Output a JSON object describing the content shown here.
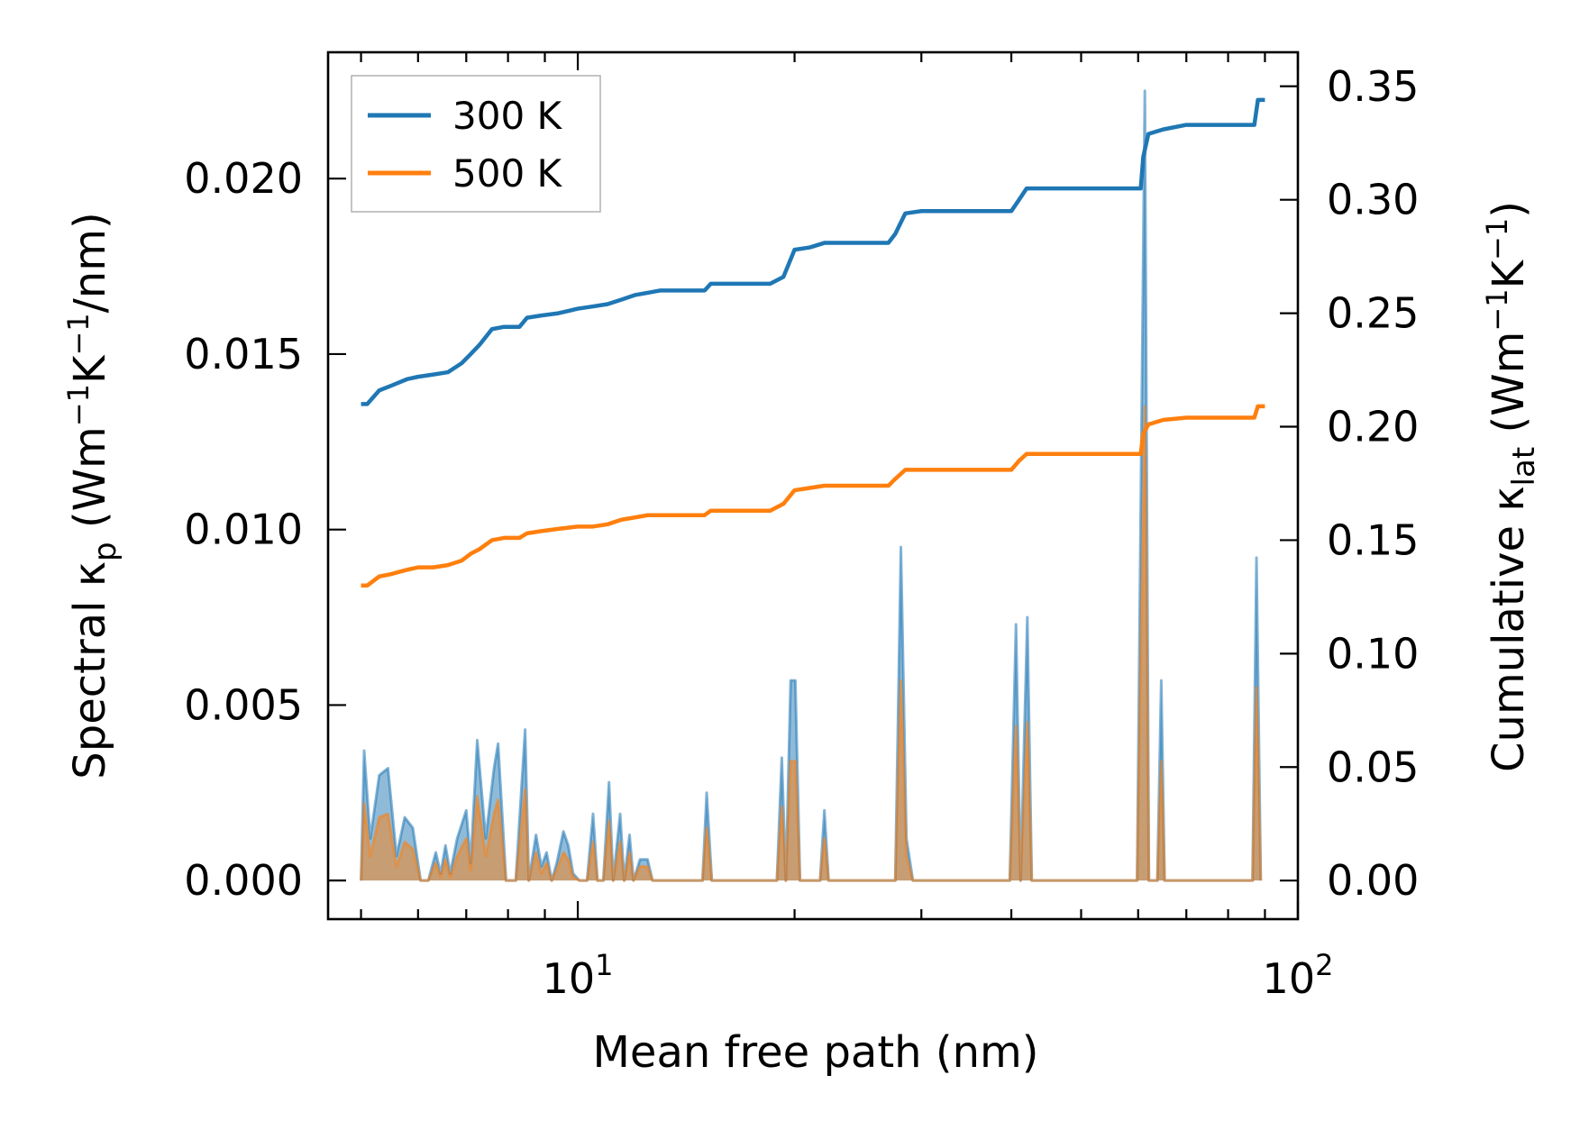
{
  "chart_data": {
    "type": "line",
    "title": "",
    "xlabel": "Mean free path (nm)",
    "x_scale": "log",
    "xlim": [
      4.5,
      100
    ],
    "x_ticks": [
      {
        "value": 10,
        "base": "10",
        "exp": "1"
      },
      {
        "value": 100,
        "base": "10",
        "exp": "2"
      }
    ],
    "left_axis": {
      "label": {
        "main": "Spectral κ",
        "sub": "p",
        "unit_open": " (Wm",
        "sup1": "−1",
        "mid": "K",
        "sup2": "−1",
        "unit_close": "/nm)"
      },
      "ylim": [
        -0.0011,
        0.0236
      ],
      "ticks": [
        0.0,
        0.005,
        0.01,
        0.015,
        0.02
      ],
      "tick_labels": [
        "0.000",
        "0.005",
        "0.010",
        "0.015",
        "0.020"
      ]
    },
    "right_axis": {
      "label": {
        "main": "Cumulative κ",
        "sub": "lat",
        "unit_open": " (Wm",
        "sup1": "−1",
        "mid": "K",
        "sup2": "−1",
        "unit_close": ")"
      },
      "ylim": [
        -0.017,
        0.365
      ],
      "ticks": [
        0.0,
        0.05,
        0.1,
        0.15,
        0.2,
        0.25,
        0.3,
        0.35
      ],
      "tick_labels": [
        "0.00",
        "0.05",
        "0.10",
        "0.15",
        "0.20",
        "0.25",
        "0.30",
        "0.35"
      ]
    },
    "legend": {
      "position": "top-left",
      "entries": [
        {
          "label": "300 K",
          "color": "#1f77b4"
        },
        {
          "label": "500 K",
          "color": "#ff7f0e"
        }
      ]
    },
    "cumulative_series": [
      {
        "name": "300 K",
        "color": "#1f77b4",
        "points": [
          [
            5.0,
            0.21
          ],
          [
            5.1,
            0.21
          ],
          [
            5.3,
            0.216
          ],
          [
            5.5,
            0.218
          ],
          [
            5.8,
            0.221
          ],
          [
            6.0,
            0.222
          ],
          [
            6.3,
            0.223
          ],
          [
            6.6,
            0.224
          ],
          [
            6.9,
            0.228
          ],
          [
            7.1,
            0.232
          ],
          [
            7.3,
            0.236
          ],
          [
            7.6,
            0.243
          ],
          [
            7.9,
            0.244
          ],
          [
            8.3,
            0.244
          ],
          [
            8.5,
            0.248
          ],
          [
            8.9,
            0.249
          ],
          [
            9.4,
            0.25
          ],
          [
            10.0,
            0.252
          ],
          [
            10.5,
            0.253
          ],
          [
            11.0,
            0.254
          ],
          [
            11.5,
            0.256
          ],
          [
            12.0,
            0.258
          ],
          [
            12.5,
            0.259
          ],
          [
            13.0,
            0.26
          ],
          [
            14.0,
            0.26
          ],
          [
            15.0,
            0.26
          ],
          [
            15.3,
            0.263
          ],
          [
            16.5,
            0.263
          ],
          [
            18.5,
            0.263
          ],
          [
            19.3,
            0.266
          ],
          [
            20.0,
            0.278
          ],
          [
            21.0,
            0.279
          ],
          [
            22.0,
            0.281
          ],
          [
            24.0,
            0.281
          ],
          [
            27.0,
            0.281
          ],
          [
            27.6,
            0.285
          ],
          [
            28.5,
            0.294
          ],
          [
            30.0,
            0.295
          ],
          [
            35.0,
            0.295
          ],
          [
            40.0,
            0.295
          ],
          [
            41.0,
            0.3
          ],
          [
            42.0,
            0.305
          ],
          [
            50.0,
            0.305
          ],
          [
            60.5,
            0.305
          ],
          [
            61.0,
            0.319
          ],
          [
            62.0,
            0.329
          ],
          [
            65.0,
            0.331
          ],
          [
            70.0,
            0.333
          ],
          [
            80.0,
            0.333
          ],
          [
            87.0,
            0.333
          ],
          [
            88.0,
            0.344
          ],
          [
            90.0,
            0.344
          ]
        ]
      },
      {
        "name": "500 K",
        "color": "#ff7f0e",
        "points": [
          [
            5.0,
            0.13
          ],
          [
            5.1,
            0.13
          ],
          [
            5.3,
            0.134
          ],
          [
            5.5,
            0.135
          ],
          [
            5.8,
            0.137
          ],
          [
            6.0,
            0.138
          ],
          [
            6.3,
            0.138
          ],
          [
            6.6,
            0.139
          ],
          [
            6.9,
            0.141
          ],
          [
            7.1,
            0.144
          ],
          [
            7.3,
            0.146
          ],
          [
            7.6,
            0.15
          ],
          [
            7.9,
            0.151
          ],
          [
            8.3,
            0.151
          ],
          [
            8.5,
            0.153
          ],
          [
            8.9,
            0.154
          ],
          [
            9.4,
            0.155
          ],
          [
            10.0,
            0.156
          ],
          [
            10.5,
            0.156
          ],
          [
            11.0,
            0.157
          ],
          [
            11.5,
            0.159
          ],
          [
            12.0,
            0.16
          ],
          [
            12.5,
            0.161
          ],
          [
            13.0,
            0.161
          ],
          [
            15.0,
            0.161
          ],
          [
            15.3,
            0.163
          ],
          [
            18.5,
            0.163
          ],
          [
            19.3,
            0.166
          ],
          [
            20.0,
            0.172
          ],
          [
            21.0,
            0.173
          ],
          [
            22.0,
            0.174
          ],
          [
            27.0,
            0.174
          ],
          [
            27.6,
            0.177
          ],
          [
            28.5,
            0.181
          ],
          [
            30.0,
            0.181
          ],
          [
            40.0,
            0.181
          ],
          [
            41.0,
            0.185
          ],
          [
            42.0,
            0.188
          ],
          [
            50.0,
            0.188
          ],
          [
            60.5,
            0.188
          ],
          [
            61.0,
            0.197
          ],
          [
            62.0,
            0.201
          ],
          [
            65.0,
            0.203
          ],
          [
            70.0,
            0.204
          ],
          [
            87.0,
            0.204
          ],
          [
            88.0,
            0.209
          ],
          [
            90.0,
            0.209
          ]
        ]
      }
    ],
    "spectral_series": [
      {
        "name": "300 K",
        "color": "#1f77b4",
        "points": [
          [
            5.0,
            0.0
          ],
          [
            5.05,
            0.0037
          ],
          [
            5.15,
            0.0012
          ],
          [
            5.3,
            0.003
          ],
          [
            5.45,
            0.0032
          ],
          [
            5.6,
            0.0007
          ],
          [
            5.75,
            0.0018
          ],
          [
            5.9,
            0.0015
          ],
          [
            6.05,
            0.0
          ],
          [
            6.2,
            0.0
          ],
          [
            6.35,
            0.0008
          ],
          [
            6.45,
            0.0002
          ],
          [
            6.55,
            0.001
          ],
          [
            6.65,
            0.0002
          ],
          [
            6.8,
            0.0012
          ],
          [
            7.0,
            0.002
          ],
          [
            7.1,
            0.0005
          ],
          [
            7.25,
            0.004
          ],
          [
            7.45,
            0.0012
          ],
          [
            7.65,
            0.0032
          ],
          [
            7.75,
            0.0039
          ],
          [
            7.95,
            0.0
          ],
          [
            8.2,
            0.0
          ],
          [
            8.45,
            0.0043
          ],
          [
            8.55,
            0.0
          ],
          [
            8.75,
            0.0013
          ],
          [
            8.9,
            0.0004
          ],
          [
            9.05,
            0.0008
          ],
          [
            9.2,
            0.0
          ],
          [
            9.35,
            0.0005
          ],
          [
            9.55,
            0.0014
          ],
          [
            9.7,
            0.001
          ],
          [
            9.85,
            0.0002
          ],
          [
            10.05,
            0.0
          ],
          [
            10.3,
            0.0
          ],
          [
            10.5,
            0.0019
          ],
          [
            10.65,
            0.0
          ],
          [
            10.85,
            0.0
          ],
          [
            11.05,
            0.0028
          ],
          [
            11.2,
            0.0
          ],
          [
            11.45,
            0.0019
          ],
          [
            11.6,
            0.0
          ],
          [
            11.8,
            0.0013
          ],
          [
            11.95,
            0.0
          ],
          [
            12.2,
            0.0006
          ],
          [
            12.5,
            0.0006
          ],
          [
            12.7,
            0.0
          ],
          [
            14.5,
            0.0
          ],
          [
            14.9,
            0.0
          ],
          [
            15.1,
            0.0025
          ],
          [
            15.35,
            0.0
          ],
          [
            18.9,
            0.0
          ],
          [
            19.2,
            0.0035
          ],
          [
            19.45,
            0.0
          ],
          [
            19.75,
            0.0057
          ],
          [
            20.05,
            0.0057
          ],
          [
            20.35,
            0.0
          ],
          [
            21.7,
            0.0
          ],
          [
            22.0,
            0.002
          ],
          [
            22.3,
            0.0
          ],
          [
            27.0,
            0.0
          ],
          [
            27.6,
            0.0
          ],
          [
            28.1,
            0.0095
          ],
          [
            28.6,
            0.0012
          ],
          [
            29.2,
            0.0
          ],
          [
            39.8,
            0.0
          ],
          [
            40.6,
            0.0073
          ],
          [
            41.2,
            0.0
          ],
          [
            42.1,
            0.0075
          ],
          [
            42.7,
            0.0
          ],
          [
            59.8,
            0.0
          ],
          [
            61.3,
            0.0225
          ],
          [
            62.1,
            0.0
          ],
          [
            63.8,
            0.0
          ],
          [
            64.6,
            0.0057
          ],
          [
            65.3,
            0.0
          ],
          [
            86.5,
            0.0
          ],
          [
            87.6,
            0.0092
          ],
          [
            88.8,
            0.0
          ]
        ]
      },
      {
        "name": "500 K",
        "color": "#ff7f0e",
        "points": [
          [
            5.0,
            0.0
          ],
          [
            5.05,
            0.0022
          ],
          [
            5.15,
            0.0007
          ],
          [
            5.3,
            0.0018
          ],
          [
            5.45,
            0.0019
          ],
          [
            5.6,
            0.0004
          ],
          [
            5.75,
            0.0011
          ],
          [
            5.9,
            0.0009
          ],
          [
            6.05,
            0.0
          ],
          [
            6.2,
            0.0
          ],
          [
            6.35,
            0.0005
          ],
          [
            6.45,
            0.0001
          ],
          [
            6.55,
            0.0006
          ],
          [
            6.65,
            0.0001
          ],
          [
            6.8,
            0.0007
          ],
          [
            7.0,
            0.0012
          ],
          [
            7.1,
            0.0003
          ],
          [
            7.25,
            0.0024
          ],
          [
            7.45,
            0.0007
          ],
          [
            7.65,
            0.0019
          ],
          [
            7.75,
            0.0023
          ],
          [
            7.95,
            0.0
          ],
          [
            8.2,
            0.0
          ],
          [
            8.45,
            0.0026
          ],
          [
            8.55,
            0.0
          ],
          [
            8.75,
            0.0008
          ],
          [
            8.9,
            0.0002
          ],
          [
            9.05,
            0.0005
          ],
          [
            9.2,
            0.0
          ],
          [
            9.35,
            0.0003
          ],
          [
            9.55,
            0.0008
          ],
          [
            9.7,
            0.0006
          ],
          [
            9.85,
            0.0001
          ],
          [
            10.05,
            0.0
          ],
          [
            10.3,
            0.0
          ],
          [
            10.5,
            0.0011
          ],
          [
            10.65,
            0.0
          ],
          [
            10.85,
            0.0
          ],
          [
            11.05,
            0.0017
          ],
          [
            11.2,
            0.0
          ],
          [
            11.45,
            0.0011
          ],
          [
            11.6,
            0.0
          ],
          [
            11.8,
            0.0008
          ],
          [
            11.95,
            0.0
          ],
          [
            12.2,
            0.0004
          ],
          [
            12.5,
            0.0004
          ],
          [
            12.7,
            0.0
          ],
          [
            14.5,
            0.0
          ],
          [
            14.9,
            0.0
          ],
          [
            15.1,
            0.0015
          ],
          [
            15.35,
            0.0
          ],
          [
            18.9,
            0.0
          ],
          [
            19.2,
            0.0021
          ],
          [
            19.45,
            0.0
          ],
          [
            19.75,
            0.0034
          ],
          [
            20.05,
            0.0034
          ],
          [
            20.35,
            0.0
          ],
          [
            21.7,
            0.0
          ],
          [
            22.0,
            0.0012
          ],
          [
            22.3,
            0.0
          ],
          [
            27.0,
            0.0
          ],
          [
            27.6,
            0.0
          ],
          [
            28.1,
            0.0057
          ],
          [
            28.6,
            0.0007
          ],
          [
            29.2,
            0.0
          ],
          [
            39.8,
            0.0
          ],
          [
            40.6,
            0.0044
          ],
          [
            41.2,
            0.0
          ],
          [
            42.1,
            0.0045
          ],
          [
            42.7,
            0.0
          ],
          [
            59.8,
            0.0
          ],
          [
            61.3,
            0.0135
          ],
          [
            62.1,
            0.0
          ],
          [
            63.8,
            0.0
          ],
          [
            64.6,
            0.0034
          ],
          [
            65.3,
            0.0
          ],
          [
            86.5,
            0.0
          ],
          [
            87.6,
            0.0055
          ],
          [
            88.8,
            0.0
          ]
        ]
      }
    ]
  }
}
